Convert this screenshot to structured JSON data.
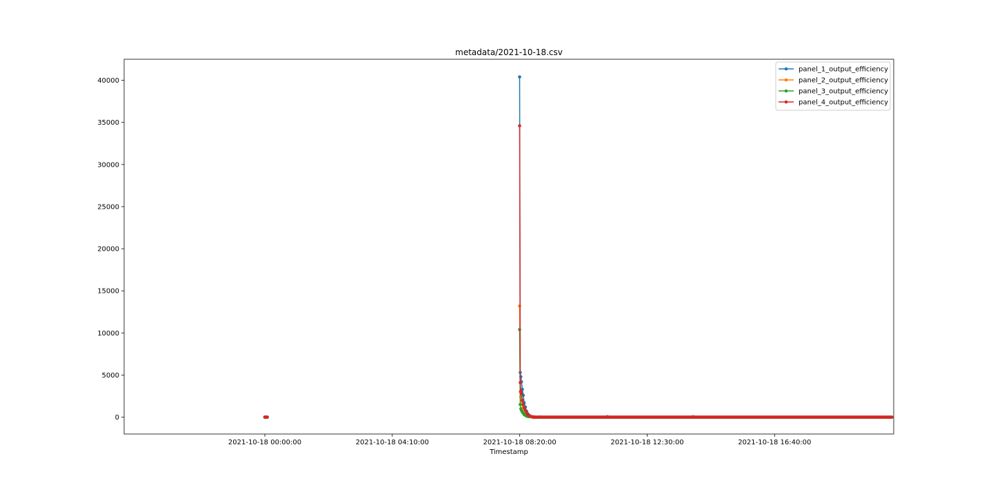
{
  "chart_data": {
    "type": "line",
    "title": "metadata/2021-10-18.csv",
    "xlabel": "Timestamp",
    "ylabel": "",
    "x_tick_labels": [
      "2021-10-18 00:00:00",
      "2021-10-18 04:10:00",
      "2021-10-18 08:20:00",
      "2021-10-18 12:30:00",
      "2021-10-18 16:40:00"
    ],
    "y_ticks": [
      0,
      5000,
      10000,
      15000,
      20000,
      25000,
      30000,
      35000,
      40000
    ],
    "ylim": [
      -2000,
      42500
    ],
    "xlim_hours": [
      -4.6,
      20.56
    ],
    "grid": false,
    "legend_position": "upper-right",
    "marker": "dot",
    "flat_range_hours": [
      8.72,
      20.5
    ],
    "series": [
      {
        "name": "panel_1_output_efficiency",
        "color": "#1f77b4",
        "points": [
          [
            0.0,
            0
          ],
          [
            0.02,
            0
          ],
          [
            0.05,
            0
          ],
          [
            0.08,
            0
          ],
          [
            8.33,
            40400
          ],
          [
            8.35,
            5300
          ],
          [
            8.37,
            4800
          ],
          [
            8.39,
            4200
          ],
          [
            8.42,
            3300
          ],
          [
            8.45,
            2600
          ],
          [
            8.48,
            1700
          ],
          [
            8.52,
            1200
          ],
          [
            8.56,
            700
          ],
          [
            8.6,
            400
          ],
          [
            8.65,
            200
          ],
          [
            8.72,
            80
          ],
          [
            8.8,
            40
          ],
          [
            9.0,
            20
          ],
          [
            11.2,
            60
          ],
          [
            14.0,
            60
          ]
        ]
      },
      {
        "name": "panel_2_output_efficiency",
        "color": "#ff7f0e",
        "points": [
          [
            0.0,
            0
          ],
          [
            0.02,
            0
          ],
          [
            0.05,
            0
          ],
          [
            0.08,
            0
          ],
          [
            8.33,
            13200
          ],
          [
            8.35,
            3000
          ],
          [
            8.37,
            2400
          ],
          [
            8.39,
            1900
          ],
          [
            8.42,
            1500
          ],
          [
            8.45,
            1200
          ],
          [
            8.48,
            900
          ],
          [
            8.52,
            600
          ],
          [
            8.56,
            400
          ],
          [
            8.6,
            250
          ],
          [
            8.65,
            150
          ],
          [
            8.72,
            60
          ],
          [
            8.8,
            30
          ],
          [
            9.0,
            15
          ]
        ]
      },
      {
        "name": "panel_3_output_efficiency",
        "color": "#2ca02c",
        "points": [
          [
            0.0,
            0
          ],
          [
            0.02,
            0
          ],
          [
            0.05,
            0
          ],
          [
            0.08,
            0
          ],
          [
            8.33,
            10400
          ],
          [
            8.35,
            1500
          ],
          [
            8.37,
            1000
          ],
          [
            8.39,
            800
          ],
          [
            8.42,
            600
          ],
          [
            8.45,
            450
          ],
          [
            8.48,
            300
          ],
          [
            8.52,
            200
          ],
          [
            8.56,
            120
          ],
          [
            8.6,
            80
          ],
          [
            8.65,
            50
          ],
          [
            8.72,
            30
          ],
          [
            8.8,
            15
          ],
          [
            9.0,
            8
          ]
        ]
      },
      {
        "name": "panel_4_output_efficiency",
        "color": "#d62728",
        "points": [
          [
            0.0,
            0
          ],
          [
            0.02,
            0
          ],
          [
            0.05,
            0
          ],
          [
            0.08,
            0
          ],
          [
            8.33,
            34600
          ],
          [
            8.35,
            4100
          ],
          [
            8.37,
            3100
          ],
          [
            8.39,
            2800
          ],
          [
            8.42,
            2000
          ],
          [
            8.45,
            1500
          ],
          [
            8.48,
            1100
          ],
          [
            8.52,
            800
          ],
          [
            8.56,
            500
          ],
          [
            8.6,
            300
          ],
          [
            8.65,
            150
          ],
          [
            8.72,
            70
          ],
          [
            8.8,
            30
          ],
          [
            9.0,
            15
          ]
        ]
      }
    ]
  }
}
